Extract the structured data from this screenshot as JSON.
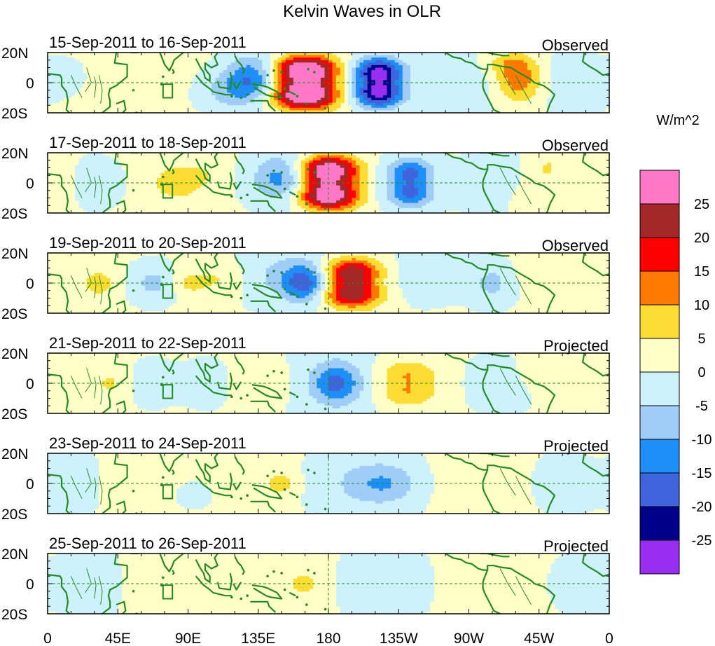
{
  "chart_data": {
    "type": "heatmap",
    "title": "Kelvin Waves in OLR",
    "variable": "OLR anomaly",
    "units_label": "W/m^2",
    "x_ticks": [
      "0",
      "45E",
      "90E",
      "135E",
      "180",
      "135W",
      "90W",
      "45W",
      "0"
    ],
    "x_tick_lons": [
      0,
      45,
      90,
      135,
      180,
      225,
      270,
      315,
      360
    ],
    "y_ticks": [
      "20N",
      "0",
      "20S"
    ],
    "y_tick_lats": [
      20,
      0,
      -20
    ],
    "xlim": [
      0,
      360
    ],
    "ylim": [
      -20,
      20
    ],
    "levels": [
      -25,
      -20,
      -15,
      -10,
      -5,
      0,
      5,
      10,
      15,
      20,
      25
    ],
    "level_labels": [
      "-25",
      "-20",
      "-15",
      "-10",
      "-5",
      "0",
      "5",
      "10",
      "15",
      "20",
      "25"
    ],
    "colors": [
      "#9a2ef0",
      "#00008b",
      "#3f64dc",
      "#1e8ff7",
      "#9fcdf8",
      "#cdf2fb",
      "#ffffc8",
      "#fddc33",
      "#ff7800",
      "#ff0000",
      "#a52828",
      "#ff78c8"
    ],
    "panels": [
      {
        "period": "15-Sep-2011 to 16-Sep-2011",
        "type": "Observed",
        "features": [
          {
            "lon": 165,
            "lat": 9,
            "val": 26,
            "wlon": 14,
            "wlat": 6
          },
          {
            "lon": 165,
            "lat": -9,
            "val": 26,
            "wlon": 14,
            "wlat": 6
          },
          {
            "lon": 165,
            "lat": 0,
            "val": 14,
            "wlon": 14,
            "wlat": 11
          },
          {
            "lon": 212,
            "lat": 8,
            "val": -20,
            "wlon": 11,
            "wlat": 6
          },
          {
            "lon": 212,
            "lat": -8,
            "val": -20,
            "wlon": 11,
            "wlat": 6
          },
          {
            "lon": 212,
            "lat": 0,
            "val": -10,
            "wlon": 10,
            "wlat": 10
          },
          {
            "lon": 133,
            "lat": 5,
            "val": -13,
            "wlon": 12,
            "wlat": 10
          },
          {
            "lon": 120,
            "lat": -5,
            "val": -9,
            "wlon": 14,
            "wlat": 9
          },
          {
            "lon": 302,
            "lat": 2,
            "val": 14,
            "wlon": 10,
            "wlat": 10
          },
          {
            "lon": 295,
            "lat": 13,
            "val": 6,
            "wlon": 10,
            "wlat": 5
          },
          {
            "lon": 40,
            "lat": 6,
            "val": 3,
            "wlon": 30,
            "wlat": 15
          },
          {
            "lon": 262,
            "lat": 0,
            "val": -3,
            "wlon": 25,
            "wlat": 14
          },
          {
            "lon": 15,
            "lat": 5,
            "val": -4,
            "wlon": 12,
            "wlat": 10
          },
          {
            "lon": 338,
            "lat": 0,
            "val": -3,
            "wlon": 18,
            "wlat": 14
          }
        ]
      },
      {
        "period": "17-Sep-2011 to 18-Sep-2011",
        "type": "Observed",
        "features": [
          {
            "lon": 180,
            "lat": 9,
            "val": 24,
            "wlon": 13,
            "wlat": 6
          },
          {
            "lon": 180,
            "lat": -9,
            "val": 24,
            "wlon": 13,
            "wlat": 6
          },
          {
            "lon": 180,
            "lat": 0,
            "val": 12,
            "wlon": 13,
            "wlat": 11
          },
          {
            "lon": 150,
            "lat": 3,
            "val": -13,
            "wlon": 13,
            "wlat": 11
          },
          {
            "lon": 232,
            "lat": 8,
            "val": -12,
            "wlon": 11,
            "wlat": 6
          },
          {
            "lon": 232,
            "lat": -8,
            "val": -12,
            "wlon": 11,
            "wlat": 6
          },
          {
            "lon": 232,
            "lat": 0,
            "val": -6,
            "wlon": 10,
            "wlat": 10
          },
          {
            "lon": 82,
            "lat": 0,
            "val": 7,
            "wlon": 12,
            "wlat": 9
          },
          {
            "lon": 100,
            "lat": 6,
            "val": 3,
            "wlon": 10,
            "wlat": 8
          },
          {
            "lon": 320,
            "lat": 10,
            "val": 5,
            "wlon": 8,
            "wlat": 7
          },
          {
            "lon": 312,
            "lat": -10,
            "val": 4,
            "wlon": 10,
            "wlat": 7
          },
          {
            "lon": 28,
            "lat": 0,
            "val": -4,
            "wlon": 12,
            "wlat": 10
          },
          {
            "lon": 285,
            "lat": 0,
            "val": -3,
            "wlon": 15,
            "wlat": 14
          },
          {
            "lon": 10,
            "lat": 0,
            "val": 3,
            "wlon": 10,
            "wlat": 10
          }
        ]
      },
      {
        "period": "19-Sep-2011 to 20-Sep-2011",
        "type": "Observed",
        "features": [
          {
            "lon": 195,
            "lat": 8,
            "val": 18,
            "wlon": 13,
            "wlat": 6
          },
          {
            "lon": 195,
            "lat": -8,
            "val": 18,
            "wlon": 13,
            "wlat": 6
          },
          {
            "lon": 195,
            "lat": 0,
            "val": 8,
            "wlon": 12,
            "wlat": 10
          },
          {
            "lon": 165,
            "lat": 0,
            "val": -16,
            "wlon": 10,
            "wlat": 9
          },
          {
            "lon": 150,
            "lat": 5,
            "val": -6,
            "wlon": 20,
            "wlat": 12
          },
          {
            "lon": 110,
            "lat": 3,
            "val": 5,
            "wlon": 12,
            "wlat": 8
          },
          {
            "lon": 90,
            "lat": 0,
            "val": 5,
            "wlon": 8,
            "wlat": 6
          },
          {
            "lon": 33,
            "lat": 0,
            "val": 8,
            "wlon": 7,
            "wlat": 6
          },
          {
            "lon": 68,
            "lat": 0,
            "val": -7,
            "wlon": 10,
            "wlat": 8
          },
          {
            "lon": 285,
            "lat": 0,
            "val": -7,
            "wlon": 10,
            "wlat": 9
          },
          {
            "lon": 240,
            "lat": 5,
            "val": -3,
            "wlon": 18,
            "wlat": 12
          },
          {
            "lon": 320,
            "lat": 5,
            "val": 3,
            "wlon": 15,
            "wlat": 10
          },
          {
            "lon": 8,
            "lat": 0,
            "val": 3,
            "wlon": 10,
            "wlat": 12
          }
        ]
      },
      {
        "period": "21-Sep-2011 to 22-Sep-2011",
        "type": "Projected",
        "features": [
          {
            "lon": 185,
            "lat": 0,
            "val": -13,
            "wlon": 10,
            "wlat": 9
          },
          {
            "lon": 185,
            "lat": 0,
            "val": -5,
            "wlon": 22,
            "wlat": 15
          },
          {
            "lon": 230,
            "lat": 7,
            "val": 7,
            "wlon": 14,
            "wlat": 6
          },
          {
            "lon": 230,
            "lat": -7,
            "val": 7,
            "wlon": 14,
            "wlat": 6
          },
          {
            "lon": 230,
            "lat": 0,
            "val": 3,
            "wlon": 14,
            "wlat": 10
          },
          {
            "lon": 135,
            "lat": 0,
            "val": 5,
            "wlon": 15,
            "wlat": 9
          },
          {
            "lon": 105,
            "lat": 0,
            "val": -3,
            "wlon": 14,
            "wlat": 10
          },
          {
            "lon": 40,
            "lat": 0,
            "val": 5,
            "wlon": 10,
            "wlat": 9
          },
          {
            "lon": 65,
            "lat": 0,
            "val": -4,
            "wlon": 10,
            "wlat": 9
          },
          {
            "lon": 290,
            "lat": 0,
            "val": -3,
            "wlon": 15,
            "wlat": 12
          },
          {
            "lon": 320,
            "lat": 6,
            "val": 3,
            "wlon": 15,
            "wlat": 8
          }
        ]
      },
      {
        "period": "23-Sep-2011 to 24-Sep-2011",
        "type": "Projected",
        "features": [
          {
            "lon": 215,
            "lat": 0,
            "val": -8,
            "wlon": 16,
            "wlat": 9
          },
          {
            "lon": 200,
            "lat": 0,
            "val": -4,
            "wlon": 30,
            "wlat": 15
          },
          {
            "lon": 150,
            "lat": 0,
            "val": 6,
            "wlon": 6,
            "wlat": 5
          },
          {
            "lon": 130,
            "lat": 0,
            "val": 3,
            "wlon": 25,
            "wlat": 14
          },
          {
            "lon": 55,
            "lat": 0,
            "val": 3,
            "wlon": 20,
            "wlat": 12
          },
          {
            "lon": 20,
            "lat": 0,
            "val": -3,
            "wlon": 14,
            "wlat": 14
          },
          {
            "lon": 95,
            "lat": -6,
            "val": -3,
            "wlon": 14,
            "wlat": 8
          },
          {
            "lon": 270,
            "lat": 0,
            "val": 3,
            "wlon": 22,
            "wlat": 14
          },
          {
            "lon": 330,
            "lat": 0,
            "val": -3,
            "wlon": 14,
            "wlat": 12
          }
        ]
      },
      {
        "period": "25-Sep-2011 to 26-Sep-2011",
        "type": "Projected",
        "features": [
          {
            "lon": 165,
            "lat": 0,
            "val": 6,
            "wlon": 5,
            "wlat": 4
          },
          {
            "lon": 150,
            "lat": 0,
            "val": 3,
            "wlon": 28,
            "wlat": 14
          },
          {
            "lon": 215,
            "lat": 0,
            "val": -4,
            "wlon": 25,
            "wlat": 15
          },
          {
            "lon": 75,
            "lat": 0,
            "val": 3,
            "wlon": 20,
            "wlat": 12
          },
          {
            "lon": 30,
            "lat": 0,
            "val": -3,
            "wlon": 15,
            "wlat": 14
          },
          {
            "lon": 280,
            "lat": 0,
            "val": 3,
            "wlon": 25,
            "wlat": 14
          },
          {
            "lon": 340,
            "lat": 0,
            "val": -3,
            "wlon": 15,
            "wlat": 12
          }
        ]
      }
    ],
    "colors_meta": {
      "coastline": "#228b22",
      "equator_line": "#228b22"
    }
  }
}
